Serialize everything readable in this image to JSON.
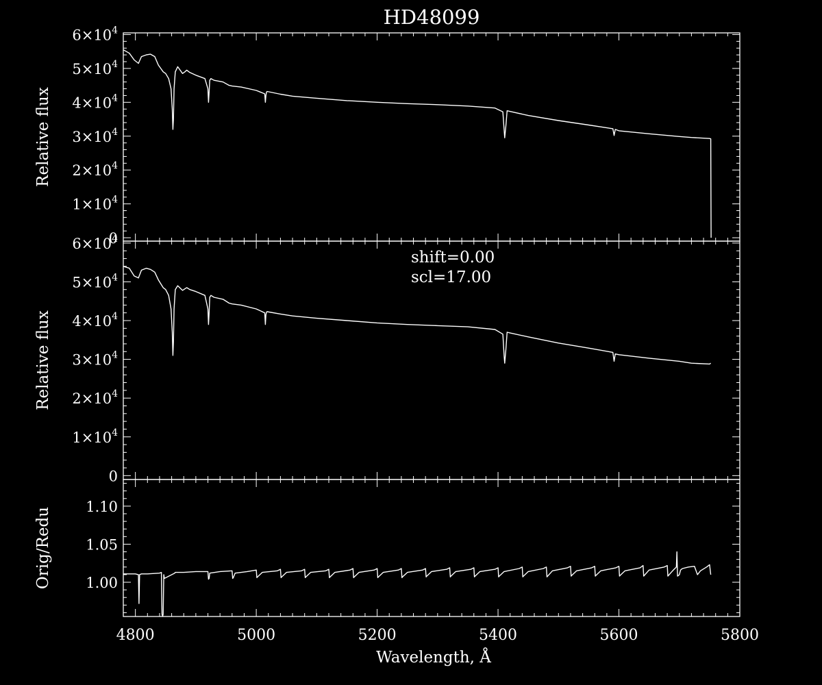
{
  "title": "HD48099",
  "chart_data": [
    {
      "type": "line",
      "panel": "top",
      "ylabel": "Relative flux",
      "xlim": [
        4780,
        5800
      ],
      "ylim": [
        -1000,
        60500
      ],
      "yticks": [
        {
          "value": 0,
          "mant": "0",
          "exp": ""
        },
        {
          "value": 10000,
          "mant": "1×10",
          "exp": "4"
        },
        {
          "value": 20000,
          "mant": "2×10",
          "exp": "4"
        },
        {
          "value": 30000,
          "mant": "3×10",
          "exp": "4"
        },
        {
          "value": 40000,
          "mant": "4×10",
          "exp": "4"
        },
        {
          "value": 50000,
          "mant": "5×10",
          "exp": "4"
        },
        {
          "value": 60000,
          "mant": "6×10",
          "exp": "4"
        }
      ],
      "series": [
        {
          "x": [
            4780,
            4790,
            4798,
            4805,
            4810,
            4818,
            4825,
            4832,
            4838,
            4842,
            4846,
            4850,
            4855,
            4859,
            4861,
            4862,
            4863,
            4864,
            4866,
            4870,
            4878,
            4882,
            4885,
            4890,
            4900,
            4915,
            4920,
            4921,
            4922,
            4923,
            4925,
            4930,
            4945,
            4955,
            4960,
            4975,
            5000,
            5014,
            5015,
            5016,
            5017,
            5018,
            5040,
            5060,
            5100,
            5150,
            5200,
            5250,
            5300,
            5350,
            5395,
            5408,
            5410,
            5411,
            5413,
            5415,
            5420,
            5450,
            5500,
            5550,
            5590,
            5592,
            5594,
            5600,
            5650,
            5700,
            5720,
            5750,
            5752,
            5752.5
          ],
          "y": [
            55500,
            54500,
            52500,
            51500,
            53500,
            54000,
            54200,
            53500,
            51000,
            50000,
            49000,
            48500,
            47000,
            44000,
            38000,
            32000,
            35000,
            44000,
            49000,
            50500,
            48500,
            49000,
            49500,
            48800,
            48000,
            47000,
            44000,
            40000,
            43000,
            46500,
            47000,
            46500,
            46000,
            45000,
            44800,
            44500,
            43500,
            42500,
            40000,
            42000,
            43000,
            43200,
            42400,
            41800,
            41200,
            40500,
            40000,
            39600,
            39300,
            38900,
            38300,
            37200,
            32000,
            29500,
            33000,
            37500,
            37300,
            36100,
            34600,
            33300,
            32200,
            30200,
            32000,
            31600,
            30700,
            29900,
            29600,
            29300,
            29200,
            0
          ]
        }
      ]
    },
    {
      "type": "line",
      "panel": "middle",
      "ylabel": "Relative flux",
      "annotations": [
        "shift=0.00",
        "scl=17.00"
      ],
      "xlim": [
        4780,
        5800
      ],
      "ylim": [
        -1000,
        60500
      ],
      "yticks": [
        {
          "value": 0,
          "mant": "0",
          "exp": ""
        },
        {
          "value": 10000,
          "mant": "1×10",
          "exp": "4"
        },
        {
          "value": 20000,
          "mant": "2×10",
          "exp": "4"
        },
        {
          "value": 30000,
          "mant": "3×10",
          "exp": "4"
        },
        {
          "value": 40000,
          "mant": "4×10",
          "exp": "4"
        },
        {
          "value": 50000,
          "mant": "5×10",
          "exp": "4"
        },
        {
          "value": 60000,
          "mant": "6×10",
          "exp": "4"
        }
      ],
      "series": [
        {
          "x": [
            4780,
            4790,
            4798,
            4805,
            4810,
            4818,
            4825,
            4832,
            4838,
            4842,
            4846,
            4850,
            4855,
            4859,
            4861,
            4862,
            4863,
            4864,
            4866,
            4870,
            4878,
            4882,
            4885,
            4890,
            4900,
            4915,
            4920,
            4921,
            4922,
            4923,
            4925,
            4930,
            4945,
            4955,
            4960,
            4975,
            5000,
            5014,
            5015,
            5016,
            5017,
            5018,
            5040,
            5060,
            5100,
            5150,
            5200,
            5250,
            5300,
            5350,
            5395,
            5408,
            5410,
            5411,
            5413,
            5415,
            5420,
            5450,
            5500,
            5550,
            5590,
            5592,
            5594,
            5600,
            5650,
            5700,
            5720,
            5750,
            5752
          ],
          "y": [
            54000,
            53500,
            51500,
            51000,
            53000,
            53500,
            53200,
            52500,
            50500,
            49500,
            48500,
            48000,
            46500,
            43000,
            37000,
            31000,
            34500,
            43000,
            48000,
            49000,
            47800,
            48200,
            48500,
            48000,
            47500,
            46500,
            43000,
            39000,
            42000,
            46000,
            46500,
            46000,
            45500,
            44500,
            44300,
            44000,
            43000,
            42000,
            39000,
            41500,
            42200,
            42300,
            41700,
            41200,
            40600,
            40000,
            39400,
            39000,
            38700,
            38400,
            37700,
            36500,
            31000,
            29000,
            32500,
            37000,
            36800,
            35800,
            34200,
            32900,
            31800,
            29500,
            31400,
            31200,
            30300,
            29500,
            29000,
            28800,
            29000
          ]
        }
      ]
    },
    {
      "type": "line",
      "panel": "bottom",
      "ylabel": "Orig/Redu",
      "xlabel": "Wavelength, Å",
      "xlim": [
        4780,
        5800
      ],
      "ylim": [
        0.955,
        1.135
      ],
      "xticks": [
        4800,
        5000,
        5200,
        5400,
        5600,
        5800
      ],
      "yticks": [
        {
          "value": 1.0,
          "mant": "1.00",
          "exp": ""
        },
        {
          "value": 1.05,
          "mant": "1.05",
          "exp": ""
        },
        {
          "value": 1.1,
          "mant": "1.10",
          "exp": ""
        }
      ],
      "series": [
        {
          "x": [
            4780,
            4800,
            4805,
            4806,
            4807,
            4810,
            4820,
            4840,
            4843,
            4844,
            4845,
            4846,
            4847,
            4848,
            4865,
            4866,
            4880,
            4900,
            4920,
            4921,
            4922,
            4923,
            4940,
            4960,
            4961,
            4962,
            4965,
            4985,
            5000,
            5001,
            5002,
            5010,
            5035,
            5040,
            5041,
            5042,
            5050,
            5075,
            5080,
            5081,
            5082,
            5090,
            5115,
            5120,
            5121,
            5122,
            5130,
            5155,
            5160,
            5161,
            5162,
            5170,
            5195,
            5200,
            5201,
            5202,
            5210,
            5235,
            5240,
            5241,
            5242,
            5250,
            5275,
            5280,
            5281,
            5282,
            5290,
            5315,
            5320,
            5321,
            5322,
            5330,
            5355,
            5360,
            5361,
            5362,
            5370,
            5395,
            5400,
            5401,
            5402,
            5410,
            5435,
            5440,
            5441,
            5442,
            5450,
            5475,
            5480,
            5481,
            5482,
            5490,
            5515,
            5520,
            5521,
            5522,
            5530,
            5555,
            5560,
            5561,
            5562,
            5570,
            5595,
            5600,
            5601,
            5602,
            5610,
            5635,
            5640,
            5641,
            5642,
            5650,
            5675,
            5680,
            5681,
            5682,
            5690,
            5695,
            5696,
            5697,
            5700,
            5702,
            5705,
            5715,
            5725,
            5730,
            5735,
            5745,
            5750,
            5752
          ],
          "y": [
            1.011,
            1.011,
            1.01,
            0.972,
            1.01,
            1.011,
            1.011,
            1.012,
            1.013,
            0.958,
            0.955,
            0.958,
            1.01,
            1.005,
            1.012,
            1.013,
            1.013,
            1.014,
            1.014,
            1.004,
            1.005,
            1.012,
            1.014,
            1.015,
            1.005,
            1.006,
            1.012,
            1.014,
            1.016,
            1.006,
            1.007,
            1.013,
            1.015,
            1.017,
            1.006,
            1.007,
            1.013,
            1.015,
            1.017,
            1.006,
            1.007,
            1.013,
            1.015,
            1.017,
            1.006,
            1.007,
            1.013,
            1.016,
            1.018,
            1.006,
            1.007,
            1.013,
            1.016,
            1.018,
            1.006,
            1.007,
            1.013,
            1.016,
            1.018,
            1.006,
            1.007,
            1.013,
            1.016,
            1.018,
            1.007,
            1.008,
            1.014,
            1.017,
            1.019,
            1.007,
            1.008,
            1.014,
            1.017,
            1.019,
            1.007,
            1.008,
            1.014,
            1.017,
            1.019,
            1.007,
            1.008,
            1.014,
            1.018,
            1.02,
            1.007,
            1.008,
            1.014,
            1.018,
            1.02,
            1.007,
            1.008,
            1.015,
            1.019,
            1.021,
            1.008,
            1.009,
            1.015,
            1.019,
            1.021,
            1.008,
            1.009,
            1.015,
            1.019,
            1.021,
            1.008,
            1.009,
            1.015,
            1.019,
            1.022,
            1.008,
            1.009,
            1.016,
            1.02,
            1.022,
            1.008,
            1.009,
            1.016,
            1.02,
            1.04,
            1.008,
            1.01,
            1.016,
            1.018,
            1.02,
            1.021,
            1.01,
            1.015,
            1.02,
            1.023,
            1.01
          ]
        }
      ]
    }
  ]
}
